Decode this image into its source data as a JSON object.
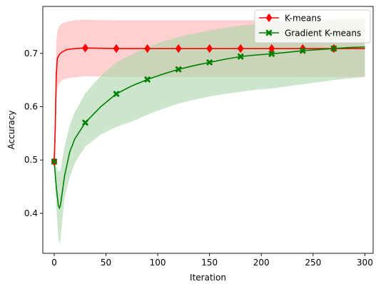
{
  "chart_data": {
    "type": "line",
    "xlabel": "Iteration",
    "ylabel": "Accuracy",
    "xlim": [
      -11,
      308
    ],
    "ylim": [
      0.325,
      0.788
    ],
    "xticks": [
      0,
      50,
      100,
      150,
      200,
      250,
      300
    ],
    "yticks": [
      0.4,
      0.5,
      0.6,
      0.7
    ],
    "ytick_labels": [
      "0.4",
      "0.5",
      "0.6",
      "0.7"
    ],
    "grid": false,
    "legend": "top-right",
    "series": [
      {
        "name": "K-means",
        "color": "#ff0000",
        "band_color": "#ffaaaa",
        "marker": "diamond",
        "marker_x": [
          0,
          30,
          60,
          90,
          120,
          150,
          180,
          210,
          240,
          270
        ],
        "x": [
          0,
          1,
          2,
          3,
          5,
          8,
          12,
          20,
          30,
          60,
          100,
          200,
          300
        ],
        "y": [
          0.497,
          0.56,
          0.66,
          0.69,
          0.698,
          0.703,
          0.707,
          0.709,
          0.71,
          0.709,
          0.709,
          0.709,
          0.709
        ],
        "upper": [
          0.497,
          0.62,
          0.72,
          0.742,
          0.752,
          0.756,
          0.759,
          0.762,
          0.763,
          0.762,
          0.762,
          0.762,
          0.762
        ],
        "lower": [
          0.497,
          0.5,
          0.61,
          0.635,
          0.645,
          0.65,
          0.653,
          0.655,
          0.657,
          0.656,
          0.656,
          0.656,
          0.656
        ]
      },
      {
        "name": "Gradient K-means",
        "color": "#008000",
        "band_color": "#a9d6a9",
        "marker": "x",
        "marker_x": [
          0,
          30,
          60,
          90,
          120,
          150,
          180,
          210,
          240,
          270
        ],
        "x": [
          0,
          2,
          4,
          5,
          6,
          10,
          15,
          20,
          30,
          45,
          60,
          75,
          90,
          105,
          120,
          135,
          150,
          165,
          180,
          195,
          210,
          225,
          240,
          255,
          270,
          285,
          300
        ],
        "y": [
          0.497,
          0.45,
          0.415,
          0.41,
          0.415,
          0.47,
          0.515,
          0.54,
          0.57,
          0.6,
          0.624,
          0.639,
          0.651,
          0.661,
          0.67,
          0.677,
          0.683,
          0.689,
          0.694,
          0.697,
          0.699,
          0.702,
          0.705,
          0.707,
          0.709,
          0.711,
          0.712
        ],
        "upper": [
          0.497,
          0.487,
          0.479,
          0.478,
          0.481,
          0.525,
          0.565,
          0.59,
          0.625,
          0.658,
          0.683,
          0.698,
          0.712,
          0.722,
          0.731,
          0.737,
          0.743,
          0.748,
          0.752,
          0.755,
          0.758,
          0.76,
          0.762,
          0.763,
          0.764,
          0.765,
          0.766
        ],
        "lower": [
          0.497,
          0.41,
          0.355,
          0.342,
          0.35,
          0.43,
          0.468,
          0.495,
          0.525,
          0.548,
          0.562,
          0.572,
          0.585,
          0.596,
          0.606,
          0.613,
          0.619,
          0.624,
          0.628,
          0.632,
          0.634,
          0.638,
          0.642,
          0.646,
          0.65,
          0.653,
          0.656
        ]
      }
    ]
  }
}
